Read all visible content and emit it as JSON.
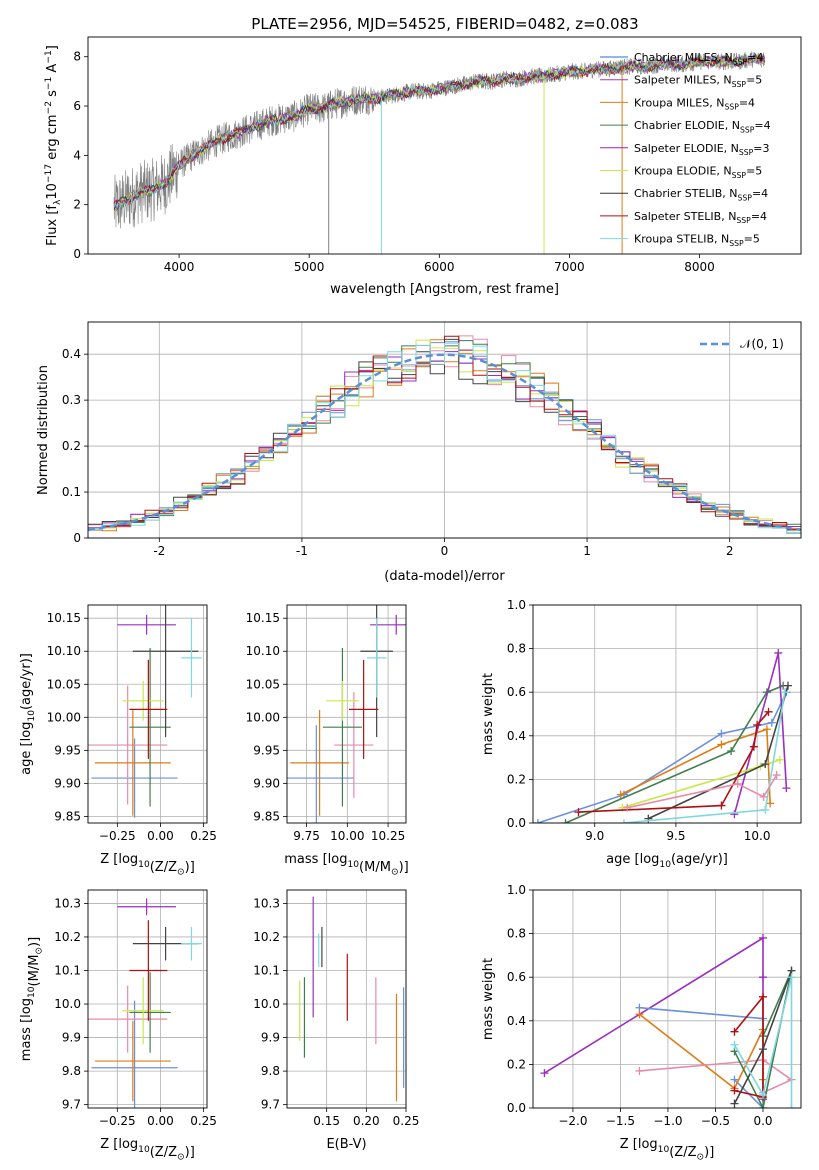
{
  "figure": {
    "title": "PLATE=2956, MJD=54525, FIBERID=0482, z=0.083"
  },
  "chart_data": [
    {
      "id": "spectrum",
      "type": "line",
      "title": "PLATE=2956, MJD=54525, FIBERID=0482, z=0.083",
      "xlabel": "wavelength [Angstrom, rest frame]",
      "ylabel": "Flux [f_λ10^-17 erg cm^-2 s^-1 A^-1]",
      "xlim": [
        3300,
        8780
      ],
      "ylim": [
        0,
        8.8
      ],
      "xticks": [
        4000,
        5000,
        6000,
        7000,
        8000
      ],
      "yticks": [
        0,
        2,
        4,
        6,
        8
      ],
      "grid": false,
      "legend_position": "top-right",
      "data_color": "#808080",
      "data_x": [
        3500,
        3600,
        3700,
        3800,
        3900,
        4000,
        4100,
        4200,
        4300,
        4400,
        4500,
        4600,
        4700,
        4800,
        4900,
        5000,
        5100,
        5200,
        5300,
        5400,
        5500,
        5600,
        5700,
        5800,
        5900,
        6000,
        6100,
        6200,
        6300,
        6400,
        6500,
        6600,
        6700,
        6800,
        6900,
        7000,
        7100,
        7200,
        7300,
        7400,
        7500,
        7600,
        7700,
        7800,
        7900,
        8000,
        8100,
        8200,
        8300,
        8400,
        8500
      ],
      "data_y": [
        1.9,
        2.2,
        2.5,
        2.6,
        2.9,
        3.6,
        4.0,
        4.3,
        4.6,
        4.8,
        5.0,
        5.2,
        5.4,
        5.5,
        5.6,
        5.9,
        5.9,
        6.1,
        6.2,
        6.3,
        6.3,
        6.4,
        6.5,
        6.6,
        6.6,
        6.7,
        6.8,
        6.9,
        7.0,
        7.0,
        7.1,
        7.1,
        7.2,
        7.2,
        7.3,
        7.4,
        7.4,
        7.5,
        7.5,
        7.6,
        7.6,
        7.6,
        7.7,
        7.7,
        7.7,
        7.8,
        7.8,
        7.8,
        7.8,
        7.9,
        7.9
      ],
      "series": [
        {
          "name": "Chabrier MILES, N_SSP=4",
          "color": "#1f6fd1"
        },
        {
          "name": "Salpeter MILES, N_SSP=5",
          "color": "#9a3fc6"
        },
        {
          "name": "Kroupa MILES, N_SSP=4",
          "color": "#e07b16"
        },
        {
          "name": "Chabrier ELODIE, N_SSP=4",
          "color": "#3f7f4f"
        },
        {
          "name": "Salpeter ELODIE, N_SSP=3",
          "color": "#a020c0"
        },
        {
          "name": "Kroupa ELODIE, N_SSP=5",
          "color": "#c9e84a"
        },
        {
          "name": "Chabrier STELIB, N_SSP=4",
          "color": "#333333"
        },
        {
          "name": "Salpeter STELIB, N_SSP=4",
          "color": "#b01010"
        },
        {
          "name": "Kroupa STELIB, N_SSP=5",
          "color": "#7fd8e0"
        }
      ]
    },
    {
      "id": "residuals",
      "type": "line",
      "xlabel": "(data-model)/error",
      "ylabel": "Normed distribution",
      "xlim": [
        -2.5,
        2.5
      ],
      "ylim": [
        0,
        0.47
      ],
      "xticks": [
        -2,
        -1,
        0,
        1,
        2
      ],
      "yticks": [
        0.0,
        0.1,
        0.2,
        0.3,
        0.4
      ],
      "grid": true,
      "legend_position": "top-right",
      "reference": {
        "name": "𝒩(0, 1)",
        "color": "#5b8fd6",
        "style": "dashed"
      },
      "bin_width": 0.1,
      "series_colors": [
        "#6b8fdf",
        "#e88aa9",
        "#e07b16",
        "#3f7f4f",
        "#9a2fc0",
        "#c9e84a",
        "#444444",
        "#b01010",
        "#7fd8e0"
      ]
    },
    {
      "id": "age_vs_Z",
      "type": "scatter",
      "xlabel": "Z [log10(Z/Z☉)]",
      "ylabel": "age  [log10(age/yr)]",
      "xlim": [
        -0.42,
        0.27
      ],
      "ylim": [
        9.84,
        10.17
      ],
      "xticks": [
        -0.25,
        0.0,
        0.25
      ],
      "xtick_labels": [
        "−0.25",
        "0.00",
        "0.25"
      ],
      "yticks": [
        9.85,
        9.9,
        9.95,
        10.0,
        10.05,
        10.1,
        10.15
      ],
      "ytick_labels": [
        "9.85",
        "9.90",
        "9.95",
        "10.00",
        "10.05",
        "10.10",
        "10.15"
      ],
      "grid": true,
      "points": [
        {
          "x": -0.15,
          "xerr": 0.25,
          "y": 9.908,
          "yerr": 0.06,
          "color": "#6b8fdf"
        },
        {
          "x": -0.19,
          "xerr": 0.23,
          "y": 9.958,
          "yerr": 0.09,
          "color": "#e88aa9"
        },
        {
          "x": -0.16,
          "xerr": 0.22,
          "y": 9.931,
          "yerr": 0.08,
          "color": "#e07b16"
        },
        {
          "x": -0.06,
          "xerr": 0.12,
          "y": 9.985,
          "yerr": 0.12,
          "color": "#3f7f4f"
        },
        {
          "x": -0.08,
          "xerr": 0.17,
          "y": 10.14,
          "yerr": 0.015,
          "color": "#9a2fc0"
        },
        {
          "x": -0.1,
          "xerr": 0.12,
          "y": 10.025,
          "yerr": 0.03,
          "color": "#c9e84a"
        },
        {
          "x": 0.03,
          "xerr": 0.19,
          "y": 10.1,
          "yerr": 0.13,
          "color": "#444444"
        },
        {
          "x": -0.07,
          "xerr": 0.11,
          "y": 10.012,
          "yerr": 0.075,
          "color": "#b01010"
        },
        {
          "x": 0.18,
          "xerr": 0.06,
          "y": 10.09,
          "yerr": 0.06,
          "color": "#7fd8e0"
        }
      ]
    },
    {
      "id": "age_vs_mass",
      "type": "scatter",
      "xlabel": "mass [log10(M/M☉)]",
      "ylabel": "",
      "xlim": [
        9.63,
        10.36
      ],
      "ylim": [
        9.84,
        10.17
      ],
      "xticks": [
        9.75,
        10.0,
        10.25
      ],
      "xtick_labels": [
        "9.75",
        "10.00",
        "10.25"
      ],
      "yticks": [
        9.85,
        9.9,
        9.95,
        10.0,
        10.05,
        10.1,
        10.15
      ],
      "ytick_labels": [
        "9.85",
        "9.90",
        "9.95",
        "10.00",
        "10.05",
        "10.10",
        "10.15"
      ],
      "grid": true,
      "points": [
        {
          "x": 9.81,
          "xerr": 0.23,
          "y": 9.908,
          "yerr": 0.08,
          "color": "#6b8fdf"
        },
        {
          "x": 10.04,
          "xerr": 0.12,
          "y": 9.958,
          "yerr": 0.08,
          "color": "#e88aa9"
        },
        {
          "x": 9.83,
          "xerr": 0.18,
          "y": 9.931,
          "yerr": 0.08,
          "color": "#e07b16"
        },
        {
          "x": 9.97,
          "xerr": 0.12,
          "y": 9.985,
          "yerr": 0.12,
          "color": "#3f7f4f"
        },
        {
          "x": 10.3,
          "xerr": 0.16,
          "y": 10.14,
          "yerr": 0.015,
          "color": "#9a2fc0"
        },
        {
          "x": 9.97,
          "xerr": 0.1,
          "y": 10.025,
          "yerr": 0.03,
          "color": "#c9e84a"
        },
        {
          "x": 10.18,
          "xerr": 0.1,
          "y": 10.1,
          "yerr": 0.13,
          "color": "#444444"
        },
        {
          "x": 10.1,
          "xerr": 0.09,
          "y": 10.012,
          "yerr": 0.075,
          "color": "#b01010"
        },
        {
          "x": 10.18,
          "xerr": 0.06,
          "y": 10.09,
          "yerr": 0.06,
          "color": "#7fd8e0"
        }
      ]
    },
    {
      "id": "weight_vs_age",
      "type": "line",
      "xlabel": "age  [log10(age/yr)]",
      "ylabel": "mass weight",
      "xlim": [
        8.62,
        10.27
      ],
      "ylim": [
        0,
        1.0
      ],
      "xticks": [
        9.0,
        9.5,
        10.0
      ],
      "xtick_labels": [
        "9.0",
        "9.5",
        "10.0"
      ],
      "yticks": [
        0.0,
        0.2,
        0.4,
        0.6,
        0.8,
        1.0
      ],
      "ytick_labels": [
        "0.0",
        "0.2",
        "0.4",
        "0.6",
        "0.8",
        "1.0"
      ],
      "grid": true,
      "series": [
        {
          "color": "#6b8fdf",
          "x": [
            8.65,
            9.18,
            9.78,
            10.09,
            10.18
          ],
          "y": [
            0.0,
            0.13,
            0.41,
            0.46,
            0.6
          ]
        },
        {
          "color": "#e07b16",
          "x": [
            9.16,
            9.78,
            10.06,
            10.08
          ],
          "y": [
            0.13,
            0.36,
            0.43,
            0.09
          ]
        },
        {
          "color": "#3f7f4f",
          "x": [
            8.82,
            9.84,
            10.06,
            10.16
          ],
          "y": [
            0.0,
            0.33,
            0.6,
            0.63
          ]
        },
        {
          "color": "#9a2fc0",
          "x": [
            9.86,
            10.13,
            10.18
          ],
          "y": [
            0.04,
            0.78,
            0.16
          ]
        },
        {
          "color": "#c9e84a",
          "x": [
            9.17,
            10.02,
            10.14
          ],
          "y": [
            0.07,
            0.26,
            0.29
          ]
        },
        {
          "color": "#444444",
          "x": [
            9.33,
            10.05,
            10.19
          ],
          "y": [
            0.02,
            0.27,
            0.63
          ]
        },
        {
          "color": "#b01010",
          "x": [
            8.9,
            9.78,
            9.98,
            10.0,
            10.07
          ],
          "y": [
            0.05,
            0.08,
            0.35,
            0.45,
            0.51
          ]
        },
        {
          "color": "#7fd8e0",
          "x": [
            9.18,
            10.05,
            10.17
          ],
          "y": [
            0.0,
            0.06,
            0.6
          ]
        },
        {
          "color": "#e88aa9",
          "x": [
            9.2,
            9.88,
            10.04,
            10.12
          ],
          "y": [
            0.07,
            0.18,
            0.12,
            0.22
          ]
        }
      ]
    },
    {
      "id": "mass_vs_Z",
      "type": "scatter",
      "xlabel": "Z [log10(Z/Z☉)]",
      "ylabel": "mass [log10(M/M☉)]",
      "xlim": [
        -0.42,
        0.27
      ],
      "ylim": [
        9.69,
        10.34
      ],
      "xticks": [
        -0.25,
        0.0,
        0.25
      ],
      "xtick_labels": [
        "−0.25",
        "0.00",
        "0.25"
      ],
      "yticks": [
        9.7,
        9.8,
        9.9,
        10.0,
        10.1,
        10.2,
        10.3
      ],
      "ytick_labels": [
        "9.7",
        "9.8",
        "9.9",
        "10.0",
        "10.1",
        "10.2",
        "10.3"
      ],
      "grid": true,
      "points": [
        {
          "x": -0.15,
          "xerr": 0.25,
          "y": 9.81,
          "yerr": 0.2,
          "color": "#6b8fdf"
        },
        {
          "x": -0.19,
          "xerr": 0.23,
          "y": 9.955,
          "yerr": 0.1,
          "color": "#e88aa9"
        },
        {
          "x": -0.16,
          "xerr": 0.22,
          "y": 9.83,
          "yerr": 0.12,
          "color": "#e07b16"
        },
        {
          "x": -0.06,
          "xerr": 0.12,
          "y": 9.975,
          "yerr": 0.12,
          "color": "#3f7f4f"
        },
        {
          "x": -0.08,
          "xerr": 0.17,
          "y": 10.29,
          "yerr": 0.025,
          "color": "#9a2fc0"
        },
        {
          "x": -0.1,
          "xerr": 0.12,
          "y": 9.98,
          "yerr": 0.1,
          "color": "#c9e84a"
        },
        {
          "x": 0.03,
          "xerr": 0.19,
          "y": 10.18,
          "yerr": 0.05,
          "color": "#444444"
        },
        {
          "x": -0.07,
          "xerr": 0.11,
          "y": 10.1,
          "yerr": 0.15,
          "color": "#b01010"
        },
        {
          "x": 0.18,
          "xerr": 0.06,
          "y": 10.18,
          "yerr": 0.05,
          "color": "#7fd8e0"
        }
      ]
    },
    {
      "id": "mass_vs_EBV",
      "type": "scatter",
      "xlabel": "E(B-V)",
      "ylabel": "",
      "xlim": [
        0.1,
        0.25
      ],
      "ylim": [
        9.69,
        10.34
      ],
      "xticks": [
        0.15,
        0.2,
        0.25
      ],
      "xtick_labels": [
        "0.15",
        "0.20",
        "0.25"
      ],
      "yticks": [
        9.7,
        9.8,
        9.9,
        10.0,
        10.1,
        10.2,
        10.3
      ],
      "ytick_labels": [
        "9.7",
        "9.8",
        "9.9",
        "10.0",
        "10.1",
        "10.2",
        "10.3"
      ],
      "grid": true,
      "points": [
        {
          "x": 0.247,
          "y": 9.9,
          "yerr": 0.15,
          "color": "#6b8fdf"
        },
        {
          "x": 0.212,
          "y": 9.98,
          "yerr": 0.1,
          "color": "#e88aa9"
        },
        {
          "x": 0.238,
          "y": 9.87,
          "yerr": 0.16,
          "color": "#e07b16"
        },
        {
          "x": 0.122,
          "y": 9.96,
          "yerr": 0.12,
          "color": "#3f7f4f"
        },
        {
          "x": 0.133,
          "y": 10.14,
          "yerr": 0.18,
          "color": "#9a2fc0"
        },
        {
          "x": 0.116,
          "y": 9.98,
          "yerr": 0.09,
          "color": "#c9e84a"
        },
        {
          "x": 0.144,
          "y": 10.17,
          "yerr": 0.06,
          "color": "#444444"
        },
        {
          "x": 0.176,
          "y": 10.05,
          "yerr": 0.1,
          "color": "#b01010"
        },
        {
          "x": 0.14,
          "y": 10.16,
          "yerr": 0.05,
          "color": "#7fd8e0"
        }
      ]
    },
    {
      "id": "weight_vs_Z",
      "type": "line",
      "xlabel": "Z [log10(Z/Z☉)]",
      "ylabel": "mass weight",
      "xlim": [
        -2.42,
        0.4
      ],
      "ylim": [
        0,
        1.0
      ],
      "xticks": [
        -2.0,
        -1.5,
        -1.0,
        -0.5,
        0.0
      ],
      "xtick_labels": [
        "−2.0",
        "−1.5",
        "−1.0",
        "−0.5",
        "0.0"
      ],
      "yticks": [
        0.0,
        0.2,
        0.4,
        0.6,
        0.8,
        1.0
      ],
      "ytick_labels": [
        "0.0",
        "0.2",
        "0.4",
        "0.6",
        "0.8",
        "1.0"
      ],
      "grid": true,
      "series": [
        {
          "color": "#9a2fc0",
          "x": [
            -2.3,
            0.0,
            0.0,
            0.0
          ],
          "y": [
            0.16,
            0.78,
            0.6,
            0.04
          ]
        },
        {
          "color": "#6b8fdf",
          "x": [
            -1.3,
            0.0,
            0.0,
            -0.3
          ],
          "y": [
            0.46,
            0.41,
            0.0,
            0.13
          ]
        },
        {
          "color": "#e07b16",
          "x": [
            -1.3,
            -0.3,
            0.0,
            0.0
          ],
          "y": [
            0.43,
            0.09,
            0.36,
            0.13
          ]
        },
        {
          "color": "#e88aa9",
          "x": [
            -1.3,
            0.0,
            0.3,
            0.0
          ],
          "y": [
            0.17,
            0.22,
            0.13,
            0.07
          ]
        },
        {
          "color": "#3f7f4f",
          "x": [
            -0.3,
            0.0,
            0.3,
            0.0
          ],
          "y": [
            0.26,
            0.0,
            0.63,
            0.33
          ]
        },
        {
          "color": "#b01010",
          "x": [
            -0.3,
            0.0,
            0.0,
            -0.3
          ],
          "y": [
            0.35,
            0.51,
            0.05,
            0.08
          ]
        },
        {
          "color": "#444444",
          "x": [
            -0.3,
            0.0,
            0.3
          ],
          "y": [
            0.02,
            0.27,
            0.63
          ]
        },
        {
          "color": "#7fd8e0",
          "x": [
            -0.3,
            0.0,
            0.3,
            0.3
          ],
          "y": [
            0.29,
            0.06,
            0.6,
            0.0
          ]
        }
      ]
    }
  ]
}
